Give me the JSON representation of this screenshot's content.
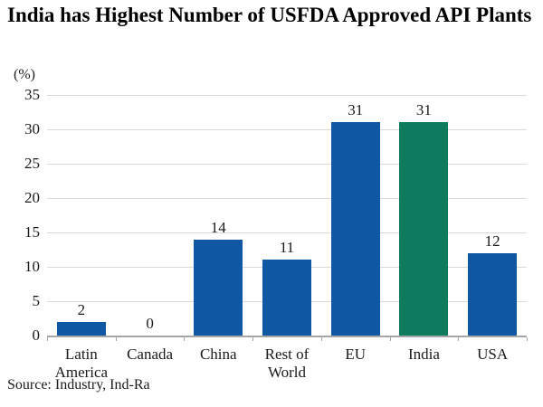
{
  "title": "India has Highest Number of USFDA Approved API Plants",
  "source": "Source: Industry, Ind-Ra",
  "chart_data": {
    "type": "bar",
    "title": "India has Highest Number of USFDA Approved API Plants",
    "categories": [
      "Latin America",
      "Canada",
      "China",
      "Rest of World",
      "EU",
      "India",
      "USA"
    ],
    "values": [
      2,
      0,
      14,
      11,
      31,
      31,
      12
    ],
    "value_labels": [
      "2",
      "0",
      "14",
      "11",
      "31",
      "31",
      "12"
    ],
    "highlight_category": "India",
    "xlabel": "",
    "ylabel": "(%)",
    "ylim": [
      0,
      35
    ],
    "ytick_step": 5,
    "grid": true,
    "legend": "none",
    "colors": {
      "bar_default": "#1057A4",
      "bar_highlight": "#0E7B5F",
      "gridline": "#D9D9D9",
      "axis_line": "#A6A6A6",
      "text": "#1A1A1A"
    }
  }
}
